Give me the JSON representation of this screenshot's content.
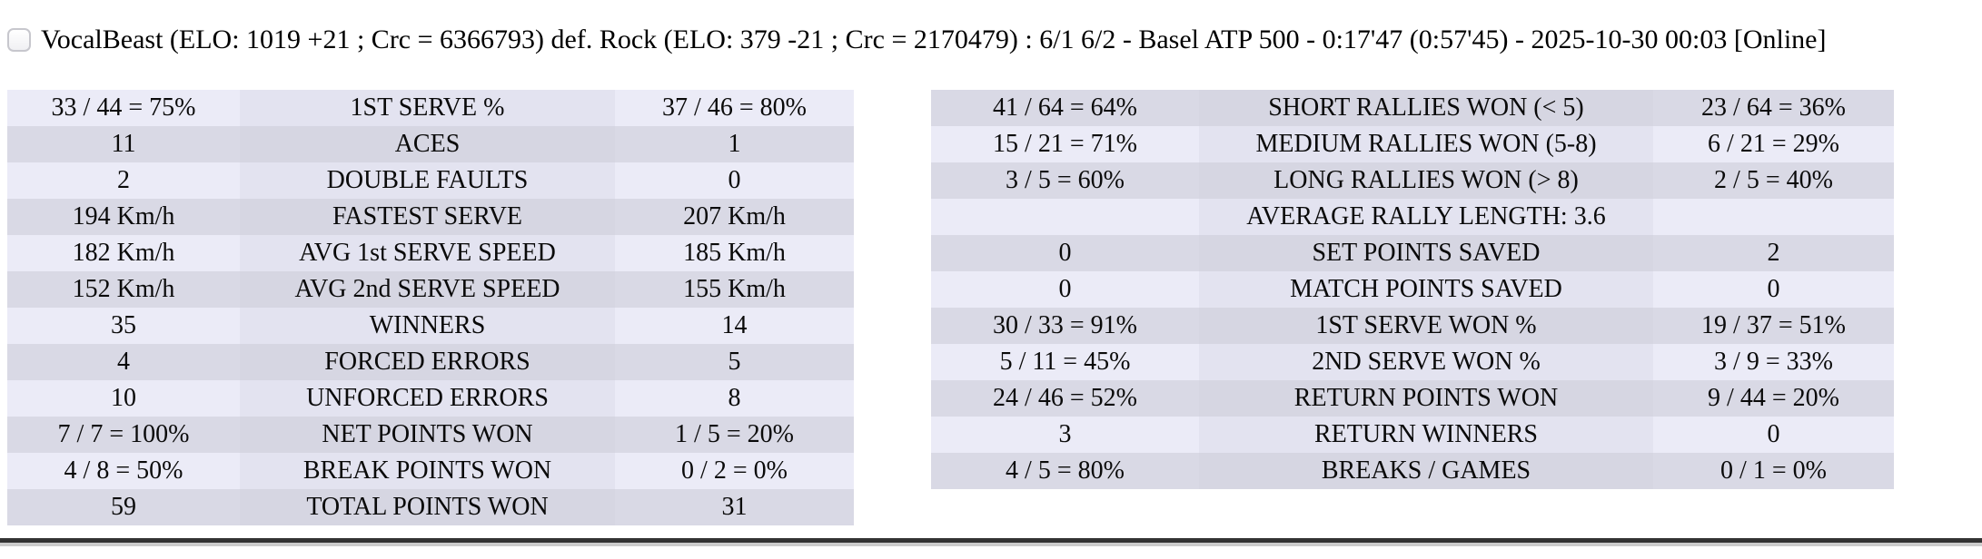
{
  "header": {
    "checkbox_checked": false,
    "match_summary": "VocalBeast (ELO: 1019 +21 ; Crc = 6366793) def. Rock (ELO: 379 -21 ; Crc = 2170479) : 6/1 6/2 - Basel ATP 500 - 0:17'47 (0:57'45) - 2025-10-30 00:03 [Online]"
  },
  "stats": {
    "left_table": {
      "rows": [
        {
          "p1": "33 / 44 = 75%",
          "label": "1ST SERVE %",
          "p2": "37 / 46 = 80%"
        },
        {
          "p1": "11",
          "label": "ACES",
          "p2": "1"
        },
        {
          "p1": "2",
          "label": "DOUBLE FAULTS",
          "p2": "0"
        },
        {
          "p1": "194 Km/h",
          "label": "FASTEST SERVE",
          "p2": "207 Km/h"
        },
        {
          "p1": "182 Km/h",
          "label": "AVG 1st SERVE SPEED",
          "p2": "185 Km/h"
        },
        {
          "p1": "152 Km/h",
          "label": "AVG 2nd SERVE SPEED",
          "p2": "155 Km/h"
        },
        {
          "p1": "35",
          "label": "WINNERS",
          "p2": "14"
        },
        {
          "p1": "4",
          "label": "FORCED ERRORS",
          "p2": "5"
        },
        {
          "p1": "10",
          "label": "UNFORCED ERRORS",
          "p2": "8"
        },
        {
          "p1": "7 / 7 = 100%",
          "label": "NET POINTS WON",
          "p2": "1 / 5 = 20%"
        },
        {
          "p1": "4 / 8 = 50%",
          "label": "BREAK POINTS WON",
          "p2": "0 / 2 = 0%"
        },
        {
          "p1": "59",
          "label": "TOTAL POINTS WON",
          "p2": "31"
        }
      ]
    },
    "right_table": {
      "rows": [
        {
          "p1": "41 / 64 = 64%",
          "label": "SHORT RALLIES WON (< 5)",
          "p2": "23 / 64 = 36%"
        },
        {
          "p1": "15 / 21 = 71%",
          "label": "MEDIUM RALLIES WON (5-8)",
          "p2": "6 / 21 = 29%"
        },
        {
          "p1": "3 / 5 = 60%",
          "label": "LONG RALLIES WON (> 8)",
          "p2": "2 / 5 = 40%"
        },
        {
          "p1": "",
          "label": "AVERAGE RALLY LENGTH: 3.6",
          "p2": ""
        },
        {
          "p1": "0",
          "label": "SET POINTS SAVED",
          "p2": "2"
        },
        {
          "p1": "0",
          "label": "MATCH POINTS SAVED",
          "p2": "0"
        },
        {
          "p1": "30 / 33 = 91%",
          "label": "1ST SERVE WON %",
          "p2": "19 / 37 = 51%"
        },
        {
          "p1": "5 / 11 = 45%",
          "label": "2ND SERVE WON %",
          "p2": "3 / 9 = 33%"
        },
        {
          "p1": "24 / 46 = 52%",
          "label": "RETURN POINTS WON",
          "p2": "9 / 44 = 20%"
        },
        {
          "p1": "3",
          "label": "RETURN WINNERS",
          "p2": "0"
        },
        {
          "p1": "4 / 5 = 80%",
          "label": "BREAKS / GAMES",
          "p2": "0 / 1 = 0%"
        }
      ]
    }
  },
  "colors": {
    "row_light": "#ebebf7",
    "row_dark": "#d9d9e5",
    "row_center_light": "#e3e3f0",
    "row_center_dark": "#d6d6e2",
    "divider_dark": "#333333",
    "divider_light": "#cccccc",
    "text": "#0a0a0a"
  }
}
